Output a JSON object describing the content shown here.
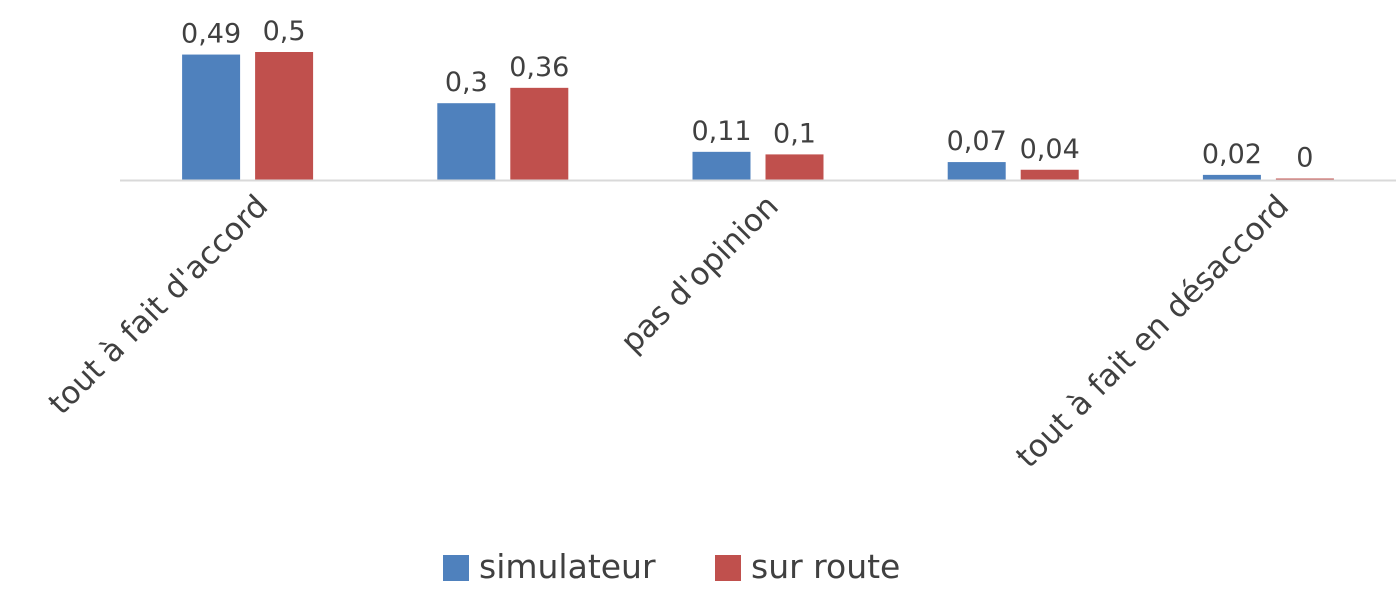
{
  "chart_data": {
    "type": "bar",
    "categories": [
      "tout à fait d'accord",
      "",
      "pas d'opinion",
      "",
      "tout à fait en désaccord"
    ],
    "series": [
      {
        "name": "simulateur",
        "color": "#4F81BD",
        "values": [
          0.49,
          0.3,
          0.11,
          0.07,
          0.02
        ],
        "labels": [
          "0,49",
          "0,3",
          "0,11",
          "0,07",
          "0,02"
        ]
      },
      {
        "name": "sur route",
        "color": "#C0504D",
        "values": [
          0.5,
          0.36,
          0.1,
          0.04,
          0
        ],
        "labels": [
          "0,5",
          "0,36",
          "0,1",
          "0,04",
          "0"
        ]
      }
    ],
    "ylim": [
      0,
      0.5
    ],
    "grid": false,
    "legend_position": "bottom",
    "axis_color": "#D9D9D9"
  }
}
